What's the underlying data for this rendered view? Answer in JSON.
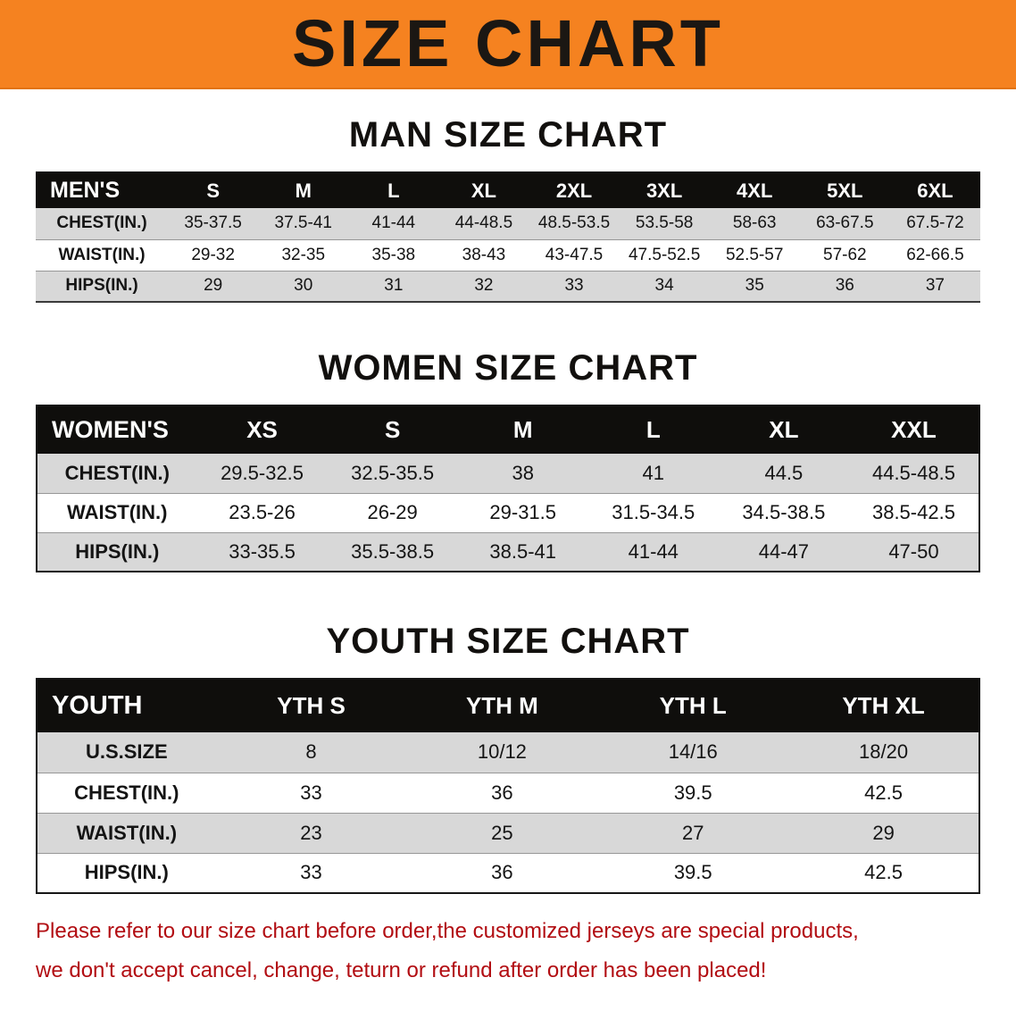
{
  "banner": {
    "title": "SIZE CHART"
  },
  "colors": {
    "banner_bg": "#f58220",
    "banner_text": "#1b1713",
    "table_header_bg": "#0f0e0c",
    "table_header_text": "#ffffff",
    "row_stripe": "#d8d8d8",
    "disclaimer_text": "#b20d12"
  },
  "chart_data": [
    {
      "type": "table",
      "title": "MAN SIZE CHART",
      "columns": [
        "MEN'S",
        "S",
        "M",
        "L",
        "XL",
        "2XL",
        "3XL",
        "4XL",
        "5XL",
        "6XL"
      ],
      "rows": [
        [
          "CHEST(IN.)",
          "35-37.5",
          "37.5-41",
          "41-44",
          "44-48.5",
          "48.5-53.5",
          "53.5-58",
          "58-63",
          "63-67.5",
          "67.5-72"
        ],
        [
          "WAIST(IN.)",
          "29-32",
          "32-35",
          "35-38",
          "38-43",
          "43-47.5",
          "47.5-52.5",
          "52.5-57",
          "57-62",
          "62-66.5"
        ],
        [
          "HIPS(IN.)",
          "29",
          "30",
          "31",
          "32",
          "33",
          "34",
          "35",
          "36",
          "37"
        ]
      ]
    },
    {
      "type": "table",
      "title": "WOMEN SIZE CHART",
      "columns": [
        "WOMEN'S",
        "XS",
        "S",
        "M",
        "L",
        "XL",
        "XXL"
      ],
      "rows": [
        [
          "CHEST(IN.)",
          "29.5-32.5",
          "32.5-35.5",
          "38",
          "41",
          "44.5",
          "44.5-48.5"
        ],
        [
          "WAIST(IN.)",
          "23.5-26",
          "26-29",
          "29-31.5",
          "31.5-34.5",
          "34.5-38.5",
          "38.5-42.5"
        ],
        [
          "HIPS(IN.)",
          "33-35.5",
          "35.5-38.5",
          "38.5-41",
          "41-44",
          "44-47",
          "47-50"
        ]
      ]
    },
    {
      "type": "table",
      "title": "YOUTH SIZE CHART",
      "columns": [
        "YOUTH",
        "YTH S",
        "YTH M",
        "YTH L",
        "YTH XL"
      ],
      "rows": [
        [
          "U.S.SIZE",
          "8",
          "10/12",
          "14/16",
          "18/20"
        ],
        [
          "CHEST(IN.)",
          "33",
          "36",
          "39.5",
          "42.5"
        ],
        [
          "WAIST(IN.)",
          "23",
          "25",
          "27",
          "29"
        ],
        [
          "HIPS(IN.)",
          "33",
          "36",
          "39.5",
          "42.5"
        ]
      ]
    }
  ],
  "disclaimer": {
    "line1": "Please refer to our size chart before order,the customized jerseys are special products,",
    "line2": "we don't accept cancel, change, teturn or refund after order has been placed!"
  }
}
